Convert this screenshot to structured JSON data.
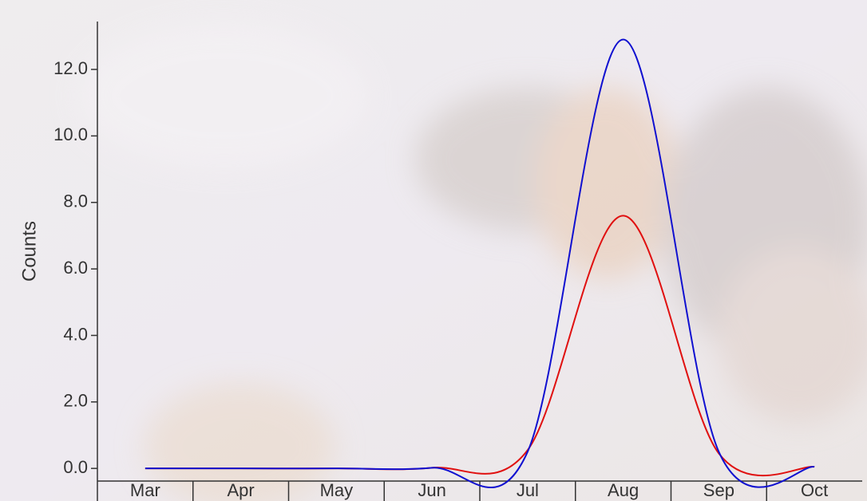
{
  "chart_data": {
    "type": "line",
    "y_label": "Counts",
    "categories": [
      "Mar",
      "Apr",
      "May",
      "Jun",
      "Jul",
      "Aug",
      "Sep",
      "Oct"
    ],
    "series": [
      {
        "color": "#e01010",
        "values": [
          0,
          0,
          0,
          0.02,
          0.55,
          7.6,
          0.45,
          0.05
        ]
      },
      {
        "color": "#1010d0",
        "values": [
          0,
          0,
          0,
          0.02,
          0.5,
          12.9,
          0.5,
          0.05
        ]
      }
    ],
    "ylim": [
      -0.38,
      13.44
    ],
    "yticks": [
      {
        "value": 0,
        "label": "0.0"
      },
      {
        "value": 2,
        "label": "2.0"
      },
      {
        "value": 4,
        "label": "4.0"
      },
      {
        "value": 6,
        "label": "6.0"
      },
      {
        "value": 8,
        "label": "8.0"
      },
      {
        "value": 10,
        "label": "10.0"
      },
      {
        "value": 12,
        "label": "12.0"
      }
    ]
  }
}
